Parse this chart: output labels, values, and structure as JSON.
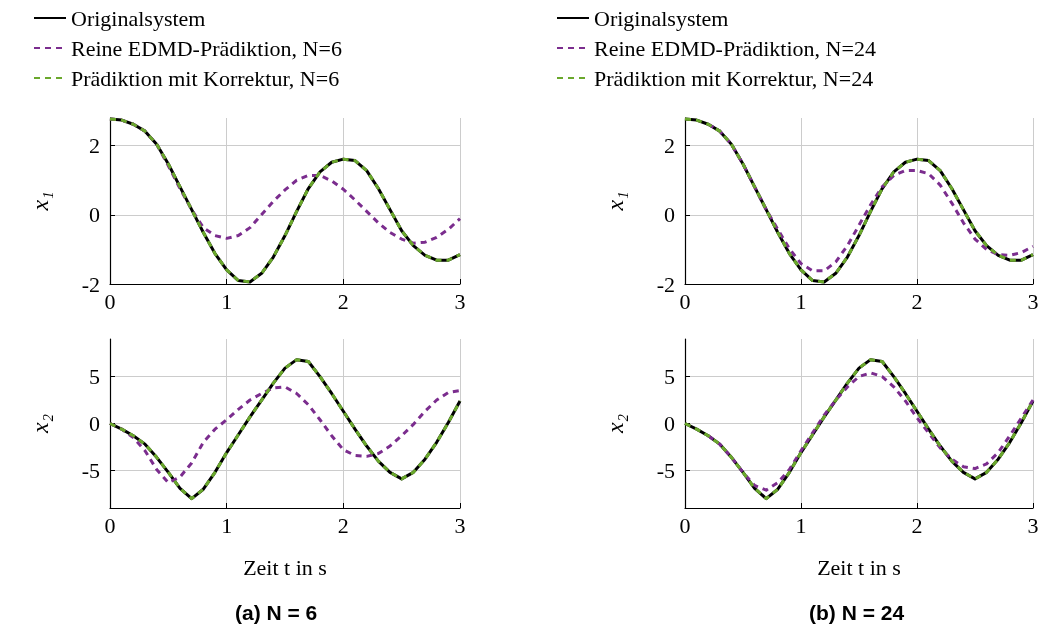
{
  "chart_data": [
    {
      "type": "line",
      "ylabel": "x₁",
      "x": [
        0,
        0.1,
        0.2,
        0.3,
        0.4,
        0.5,
        0.6,
        0.7,
        0.8,
        0.9,
        1,
        1.1,
        1.2,
        1.3,
        1.4,
        1.5,
        1.6,
        1.7,
        1.8,
        1.9,
        2,
        2.1,
        2.2,
        2.3,
        2.4,
        2.5,
        2.6,
        2.7,
        2.8,
        2.9,
        3
      ],
      "xlim": [
        0,
        3
      ],
      "xticks": [
        0,
        1,
        2,
        3
      ],
      "ylim": [
        -2,
        2.8
      ],
      "yticks": [
        -2,
        0,
        2
      ],
      "grid": true,
      "legend": "top left",
      "marker": "none",
      "series": [
        {
          "name": "Originalsystem",
          "color": "#000000",
          "line_style": "solid",
          "values": [
            2.77,
            2.74,
            2.62,
            2.42,
            2.04,
            1.47,
            0.81,
            0.15,
            -0.51,
            -1.12,
            -1.59,
            -1.9,
            -1.94,
            -1.69,
            -1.22,
            -0.6,
            0.1,
            0.76,
            1.24,
            1.52,
            1.61,
            1.57,
            1.28,
            0.76,
            0.15,
            -0.46,
            -0.89,
            -1.17,
            -1.31,
            -1.31,
            -1.15
          ]
        },
        {
          "name": "Reine EDMD-Prädiktion, N=6",
          "color": "#7b2d8e",
          "line_style": "dashed",
          "values": [
            2.77,
            2.74,
            2.62,
            2.42,
            2.04,
            1.42,
            0.76,
            0.15,
            -0.37,
            -0.6,
            -0.68,
            -0.6,
            -0.37,
            0.01,
            0.39,
            0.72,
            1.0,
            1.14,
            1.14,
            0.98,
            0.74,
            0.43,
            0.1,
            -0.23,
            -0.51,
            -0.7,
            -0.82,
            -0.79,
            -0.65,
            -0.42,
            -0.11
          ]
        },
        {
          "name": "Prädiktion mit Korrektur, N=6",
          "color": "#6aa82c",
          "line_style": "dashed",
          "values": [
            2.77,
            2.74,
            2.62,
            2.42,
            2.04,
            1.47,
            0.81,
            0.15,
            -0.51,
            -1.12,
            -1.59,
            -1.9,
            -1.94,
            -1.69,
            -1.22,
            -0.6,
            0.1,
            0.76,
            1.24,
            1.52,
            1.61,
            1.57,
            1.28,
            0.76,
            0.15,
            -0.46,
            -0.89,
            -1.17,
            -1.31,
            -1.31,
            -1.15
          ]
        }
      ]
    },
    {
      "type": "line",
      "ylabel": "x₁",
      "x": [
        0,
        0.1,
        0.2,
        0.3,
        0.4,
        0.5,
        0.6,
        0.7,
        0.8,
        0.9,
        1,
        1.1,
        1.2,
        1.3,
        1.4,
        1.5,
        1.6,
        1.7,
        1.8,
        1.9,
        2,
        2.1,
        2.2,
        2.3,
        2.4,
        2.5,
        2.6,
        2.7,
        2.8,
        2.9,
        3
      ],
      "xlim": [
        0,
        3
      ],
      "xticks": [
        0,
        1,
        2,
        3
      ],
      "ylim": [
        -2,
        2.8
      ],
      "yticks": [
        -2,
        0,
        2
      ],
      "grid": true,
      "legend": "top left",
      "marker": "none",
      "series": [
        {
          "name": "Originalsystem",
          "color": "#000000",
          "line_style": "solid",
          "values": [
            2.77,
            2.74,
            2.62,
            2.42,
            2.04,
            1.47,
            0.81,
            0.15,
            -0.51,
            -1.12,
            -1.59,
            -1.9,
            -1.94,
            -1.69,
            -1.22,
            -0.6,
            0.1,
            0.76,
            1.24,
            1.52,
            1.61,
            1.57,
            1.28,
            0.76,
            0.15,
            -0.46,
            -0.89,
            -1.17,
            -1.31,
            -1.31,
            -1.15
          ]
        },
        {
          "name": "Reine EDMD-Prädiktion, N=24",
          "color": "#7b2d8e",
          "line_style": "dashed",
          "values": [
            null,
            null,
            2.62,
            2.42,
            2.04,
            1.47,
            0.81,
            0.15,
            -0.42,
            -0.98,
            -1.41,
            -1.62,
            -1.62,
            -1.36,
            -0.89,
            -0.3,
            0.29,
            0.81,
            1.14,
            1.28,
            1.28,
            1.19,
            0.86,
            0.34,
            -0.23,
            -0.7,
            -1.0,
            -1.15,
            -1.17,
            -1.09,
            -0.91
          ]
        },
        {
          "name": "Prädiktion mit Korrektur, N=24",
          "color": "#6aa82c",
          "line_style": "dashed",
          "values": [
            2.77,
            2.74,
            2.62,
            2.42,
            2.04,
            1.47,
            0.81,
            0.15,
            -0.51,
            -1.12,
            -1.59,
            -1.9,
            -1.94,
            -1.69,
            -1.22,
            -0.6,
            0.1,
            0.76,
            1.24,
            1.52,
            1.61,
            1.57,
            1.28,
            0.76,
            0.15,
            -0.46,
            -0.89,
            -1.17,
            -1.31,
            -1.31,
            -1.15
          ]
        }
      ]
    },
    {
      "type": "line",
      "xlabel": "Zeit t in s",
      "ylabel": "x₂",
      "annotations": [
        "(a) N = 6"
      ],
      "x": [
        0,
        0.1,
        0.2,
        0.3,
        0.4,
        0.5,
        0.6,
        0.7,
        0.8,
        0.9,
        1,
        1.1,
        1.2,
        1.3,
        1.4,
        1.5,
        1.6,
        1.7,
        1.8,
        1.9,
        2,
        2.1,
        2.2,
        2.3,
        2.4,
        2.5,
        2.6,
        2.7,
        2.8,
        2.9,
        3
      ],
      "xlim": [
        0,
        3
      ],
      "xticks": [
        0,
        1,
        2,
        3
      ],
      "ylim": [
        -9,
        9
      ],
      "yticks": [
        -5,
        0,
        5
      ],
      "grid": true,
      "marker": "none",
      "series": [
        {
          "color": "#000000",
          "line_style": "solid",
          "values": [
            0,
            -0.6,
            -1.3,
            -2.2,
            -3.6,
            -5.2,
            -6.9,
            -8,
            -7,
            -5.2,
            -3.1,
            -1.2,
            0.7,
            2.5,
            4.3,
            5.9,
            6.8,
            6.6,
            5,
            3.2,
            1.3,
            -0.6,
            -2.4,
            -4,
            -5.2,
            -5.9,
            -5.2,
            -3.8,
            -2,
            0.1,
            2.4
          ]
        },
        {
          "color": "#7b2d8e",
          "line_style": "dashed",
          "values": [
            0,
            -0.6,
            -1.5,
            -2.9,
            -4.9,
            -6.3,
            -5.7,
            -4.2,
            -2,
            -0.6,
            0.4,
            1.5,
            2.5,
            3.2,
            3.8,
            3.9,
            3.2,
            2,
            0.4,
            -1.3,
            -2.8,
            -3.4,
            -3.5,
            -3.2,
            -2.4,
            -1.3,
            -0.1,
            1.3,
            2.5,
            3.3,
            3.5
          ]
        },
        {
          "color": "#6aa82c",
          "line_style": "dashed",
          "values": [
            0,
            -0.6,
            -1.3,
            -2.2,
            -3.6,
            -5.2,
            -6.9,
            -8,
            -7,
            -5.2,
            -3.1,
            -1.2,
            0.7,
            2.5,
            4.3,
            5.9,
            6.8,
            6.6,
            5,
            3.2,
            1.3,
            -0.6,
            -2.4,
            -4,
            -5.2,
            -5.9,
            -5.2,
            -3.8,
            -2,
            0.1,
            2.4
          ]
        }
      ]
    },
    {
      "type": "line",
      "xlabel": "Zeit t in s",
      "ylabel": "x₂",
      "annotations": [
        "(b) N = 24"
      ],
      "x": [
        0,
        0.1,
        0.2,
        0.3,
        0.4,
        0.5,
        0.6,
        0.7,
        0.8,
        0.9,
        1,
        1.1,
        1.2,
        1.3,
        1.4,
        1.5,
        1.6,
        1.7,
        1.8,
        1.9,
        2,
        2.1,
        2.2,
        2.3,
        2.4,
        2.5,
        2.6,
        2.7,
        2.8,
        2.9,
        3
      ],
      "xlim": [
        0,
        3
      ],
      "xticks": [
        0,
        1,
        2,
        3
      ],
      "ylim": [
        -9,
        9
      ],
      "yticks": [
        -5,
        0,
        5
      ],
      "grid": true,
      "marker": "none",
      "series": [
        {
          "color": "#000000",
          "line_style": "solid",
          "values": [
            0,
            -0.6,
            -1.3,
            -2.2,
            -3.6,
            -5.2,
            -6.9,
            -8,
            -7,
            -5.2,
            -3.1,
            -1.2,
            0.7,
            2.5,
            4.3,
            5.9,
            6.8,
            6.6,
            5,
            3.2,
            1.3,
            -0.6,
            -2.4,
            -4,
            -5.2,
            -5.9,
            -5.2,
            -3.8,
            -2,
            0.1,
            2.4
          ]
        },
        {
          "color": "#7b2d8e",
          "line_style": "dashed",
          "values": [
            null,
            null,
            -1.3,
            -2.2,
            -3.6,
            -5.2,
            -6.6,
            -7.1,
            -6.3,
            -4.9,
            -2.9,
            -1,
            0.9,
            2.5,
            3.9,
            5,
            5.4,
            5,
            3.9,
            2.4,
            0.6,
            -1,
            -2.6,
            -3.8,
            -4.6,
            -4.8,
            -4.3,
            -3.1,
            -1.3,
            0.6,
            2.5
          ]
        },
        {
          "color": "#6aa82c",
          "line_style": "dashed",
          "values": [
            0,
            -0.6,
            -1.3,
            -2.2,
            -3.6,
            -5.2,
            -6.9,
            -8,
            -7,
            -5.2,
            -3.1,
            -1.2,
            0.7,
            2.5,
            4.3,
            5.9,
            6.8,
            6.6,
            5,
            3.2,
            1.3,
            -0.6,
            -2.4,
            -4,
            -5.2,
            -5.9,
            -5.2,
            -3.8,
            -2,
            0.1,
            2.4
          ]
        }
      ]
    }
  ]
}
